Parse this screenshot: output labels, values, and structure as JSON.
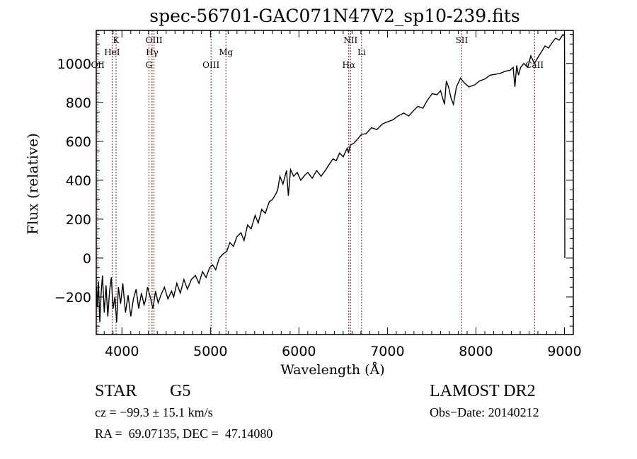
{
  "chart_data": {
    "type": "line",
    "title": "spec-56701-GAC071N47V2_sp10-239.fits",
    "xlabel": "Wavelength (Å)",
    "ylabel": "Flux (relative)",
    "xlim": [
      3710,
      9100
    ],
    "ylim": [
      -393,
      1170
    ],
    "xticks": [
      4000,
      5000,
      6000,
      7000,
      8000,
      9000
    ],
    "xtick_labels": [
      "4000",
      "5000",
      "6000",
      "7000",
      "8000",
      "9000"
    ],
    "yticks": [
      -200,
      0,
      200,
      400,
      600,
      800,
      1000
    ],
    "ytick_labels": [
      "−200",
      "0",
      "200",
      "400",
      "600",
      "800",
      "1000"
    ],
    "grid": false,
    "line_color": "#000000",
    "marker_color": "#8b1a1a",
    "series": [
      {
        "name": "spectrum",
        "x": [
          3712,
          3720,
          3735,
          3750,
          3765,
          3780,
          3800,
          3820,
          3840,
          3860,
          3880,
          3900,
          3920,
          3940,
          3960,
          3985,
          4010,
          4040,
          4070,
          4100,
          4130,
          4160,
          4190,
          4220,
          4250,
          4265,
          4290,
          4320,
          4350,
          4380,
          4410,
          4440,
          4480,
          4520,
          4560,
          4585,
          4620,
          4660,
          4700,
          4740,
          4785,
          4830,
          4870,
          4910,
          4950,
          4990,
          5025,
          5060,
          5100,
          5140,
          5185,
          5220,
          5260,
          5300,
          5345,
          5380,
          5420,
          5460,
          5505,
          5540,
          5580,
          5620,
          5665,
          5700,
          5740,
          5760,
          5785,
          5820,
          5860,
          5880,
          5905,
          5940,
          5980,
          6020,
          6065,
          6100,
          6150,
          6200,
          6250,
          6305,
          6340,
          6385,
          6420,
          6460,
          6500,
          6545,
          6560,
          6580,
          6620,
          6660,
          6705,
          6760,
          6820,
          6880,
          6945,
          7000,
          7060,
          7120,
          7185,
          7240,
          7300,
          7345,
          7400,
          7450,
          7505,
          7560,
          7600,
          7625,
          7645,
          7665,
          7690,
          7720,
          7745,
          7780,
          7825,
          7870,
          7920,
          7985,
          8040,
          8100,
          8160,
          8225,
          8280,
          8330,
          8385,
          8420,
          8440,
          8460,
          8480,
          8505,
          8540,
          8585,
          8620,
          8660,
          8705,
          8740,
          8780,
          8820,
          8865,
          8900,
          8940,
          8985,
          9000,
          9002,
          9004
        ],
        "y": [
          -150,
          -250,
          -120,
          -330,
          -180,
          -90,
          -280,
          -140,
          -300,
          -170,
          -100,
          -260,
          -200,
          -330,
          -150,
          -235,
          -130,
          -280,
          -190,
          -300,
          -210,
          -160,
          -260,
          -180,
          -240,
          -220,
          -150,
          -200,
          -260,
          -170,
          -230,
          -190,
          -150,
          -210,
          -170,
          -200,
          -130,
          -180,
          -110,
          -160,
          -110,
          -90,
          -130,
          -70,
          -100,
          -50,
          -35,
          -60,
          0,
          20,
          35,
          80,
          60,
          110,
          130,
          90,
          170,
          150,
          220,
          180,
          250,
          230,
          290,
          300,
          330,
          350,
          420,
          380,
          450,
          320,
          455,
          420,
          440,
          400,
          425,
          440,
          410,
          450,
          420,
          455,
          480,
          510,
          500,
          540,
          520,
          565,
          540,
          580,
          590,
          610,
          635,
          640,
          670,
          660,
          690,
          700,
          710,
          730,
          745,
          730,
          760,
          780,
          770,
          810,
          845,
          840,
          860,
          820,
          790,
          910,
          880,
          820,
          790,
          880,
          925,
          900,
          880,
          890,
          910,
          920,
          940,
          945,
          950,
          960,
          965,
          980,
          880,
          990,
          940,
          980,
          1000,
          980,
          1040,
          1000,
          1035,
          1060,
          1090,
          1080,
          1110,
          1130,
          1120,
          1150,
          1140,
          1000,
          0
        ]
      }
    ],
    "line_markers": [
      {
        "label": "K",
        "wavelength": 3934,
        "row": 0
      },
      {
        "label": "HeI",
        "wavelength": 3889,
        "row": 1
      },
      {
        "label": "OII",
        "wavelength": 3727,
        "row": 2
      },
      {
        "label": "OIII",
        "wavelength": 4363,
        "row": 0
      },
      {
        "label": "Hγ",
        "wavelength": 4341,
        "row": 1
      },
      {
        "label": "G",
        "wavelength": 4305,
        "row": 2
      },
      {
        "label": "OIII",
        "wavelength": 5007,
        "row": 2
      },
      {
        "label": "Mg",
        "wavelength": 5175,
        "row": 1
      },
      {
        "label": "NII",
        "wavelength": 6583,
        "row": 0
      },
      {
        "label": "Hα",
        "wavelength": 6563,
        "row": 2
      },
      {
        "label": "Li",
        "wavelength": 6708,
        "row": 1
      },
      {
        "label": "SII",
        "wavelength": 7840,
        "row": 0
      },
      {
        "label": "CaII",
        "wavelength": 8662,
        "row": 2
      }
    ]
  },
  "info": {
    "object_class": "STAR",
    "subclass": "G5",
    "redshift_line": "cz = −99.3 ± 15.1 km/s",
    "coords_line": "RA =  69.07135, DEC =  47.14080",
    "survey": "LAMOST DR2",
    "obs_date": "Obs−Date: 20140212"
  }
}
